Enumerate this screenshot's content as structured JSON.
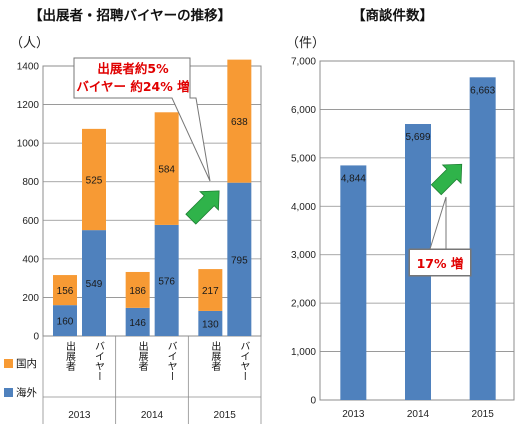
{
  "left_title": "【出展者・招聘バイヤーの推移】",
  "right_title": "【商談件数】",
  "left_unit": "（人）",
  "right_unit": "（件）",
  "callout_left": [
    "出展者約5%",
    "バイヤー 約24% 増"
  ],
  "callout_right": "17% 増",
  "legend": [
    {
      "label": "国内",
      "color": "#f79a34"
    },
    {
      "label": "海外",
      "color": "#4f81bd"
    }
  ],
  "colors": {
    "domestic": "#f79a34",
    "overseas": "#4f81bd",
    "arrow": "#2fb34a",
    "callout": "#e00000"
  },
  "chart_data": [
    {
      "type": "bar",
      "stacked": true,
      "title": "【出展者・招聘バイヤーの推移】",
      "ylabel": "（人）",
      "ylim": [
        0,
        1400
      ],
      "yticks": [
        0,
        200,
        400,
        600,
        800,
        1000,
        1200,
        1400
      ],
      "grid": true,
      "groups": [
        {
          "year": "2013",
          "bars": [
            {
              "label": "出展者",
              "overseas": 160,
              "domestic": 156
            },
            {
              "label": "バイヤー",
              "overseas": 549,
              "domestic": 525
            }
          ]
        },
        {
          "year": "2014",
          "bars": [
            {
              "label": "出展者",
              "overseas": 146,
              "domestic": 186
            },
            {
              "label": "バイヤー",
              "overseas": 576,
              "domestic": 584
            }
          ]
        },
        {
          "year": "2015",
          "bars": [
            {
              "label": "出展者",
              "overseas": 130,
              "domestic": 217
            },
            {
              "label": "バイヤー",
              "overseas": 795,
              "domestic": 638
            }
          ]
        }
      ],
      "series": [
        {
          "name": "国内"
        },
        {
          "name": "海外"
        }
      ]
    },
    {
      "type": "bar",
      "title": "【商談件数】",
      "ylabel": "（件）",
      "ylim": [
        0,
        7000
      ],
      "yticks": [
        "0",
        "1,000",
        "2,000",
        "3,000",
        "4,000",
        "5,000",
        "6,000",
        "7,000"
      ],
      "grid": true,
      "categories": [
        "2013",
        "2014",
        "2015"
      ],
      "values": [
        4844,
        5699,
        6663
      ],
      "value_labels": [
        "4,844",
        "5,699",
        "6,663"
      ]
    }
  ]
}
